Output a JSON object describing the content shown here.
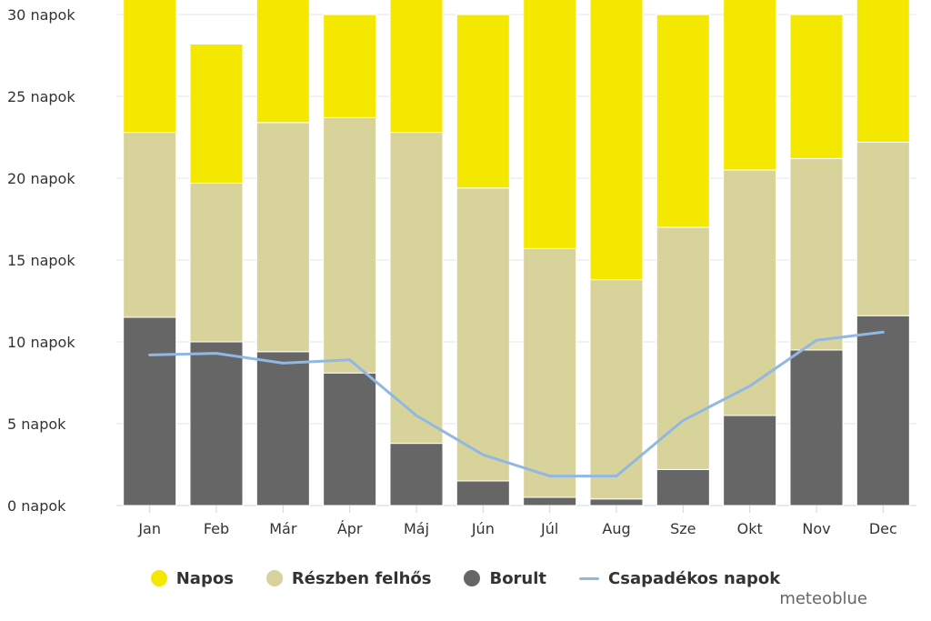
{
  "chart_data": {
    "type": "bar",
    "stacked": true,
    "categories": [
      "Jan",
      "Feb",
      "Már",
      "Ápr",
      "Máj",
      "Jún",
      "Júl",
      "Aug",
      "Sze",
      "Okt",
      "Nov",
      "Dec"
    ],
    "series": [
      {
        "name": "Borult",
        "kind": "bar",
        "color": "#666666",
        "values": [
          11.5,
          10.0,
          9.4,
          8.1,
          3.8,
          1.5,
          0.5,
          0.4,
          2.2,
          5.5,
          9.5,
          11.6
        ]
      },
      {
        "name": "Részben felhős",
        "kind": "bar",
        "color": "#d8d39a",
        "values": [
          11.3,
          9.7,
          14.0,
          15.6,
          19.0,
          17.9,
          15.2,
          13.4,
          14.8,
          15.0,
          11.7,
          10.6
        ]
      },
      {
        "name": "Napos",
        "kind": "bar",
        "color": "#f5e800",
        "values": [
          8.2,
          8.5,
          7.6,
          6.3,
          8.2,
          10.6,
          15.3,
          17.2,
          13.0,
          10.5,
          8.8,
          8.8
        ]
      },
      {
        "name": "Csapadékos napok",
        "kind": "line",
        "color": "#90b8e2",
        "values": [
          9.2,
          9.3,
          8.7,
          8.9,
          5.5,
          3.1,
          1.8,
          1.8,
          5.2,
          7.3,
          10.1,
          10.6
        ]
      }
    ],
    "yaxis": {
      "min": 0,
      "max": 30,
      "ticks": [
        0,
        5,
        10,
        15,
        20,
        25,
        30
      ],
      "tick_labels": [
        "0 napok",
        "5 napok",
        "10 napok",
        "15 napok",
        "20 napok",
        "25 napok",
        "30 napok"
      ]
    },
    "title": "",
    "xlabel": "",
    "ylabel": "",
    "grid": true,
    "legend_position": "bottom"
  },
  "legend": [
    {
      "label": "Napos",
      "color": "#f5e800",
      "marker": "dot"
    },
    {
      "label": "Részben felhős",
      "color": "#d8d39a",
      "marker": "dot"
    },
    {
      "label": "Borult",
      "color": "#666666",
      "marker": "dot"
    },
    {
      "label": "Csapadékos napok",
      "color": "#90b8e2",
      "marker": "line"
    }
  ],
  "brand": "meteoblue"
}
